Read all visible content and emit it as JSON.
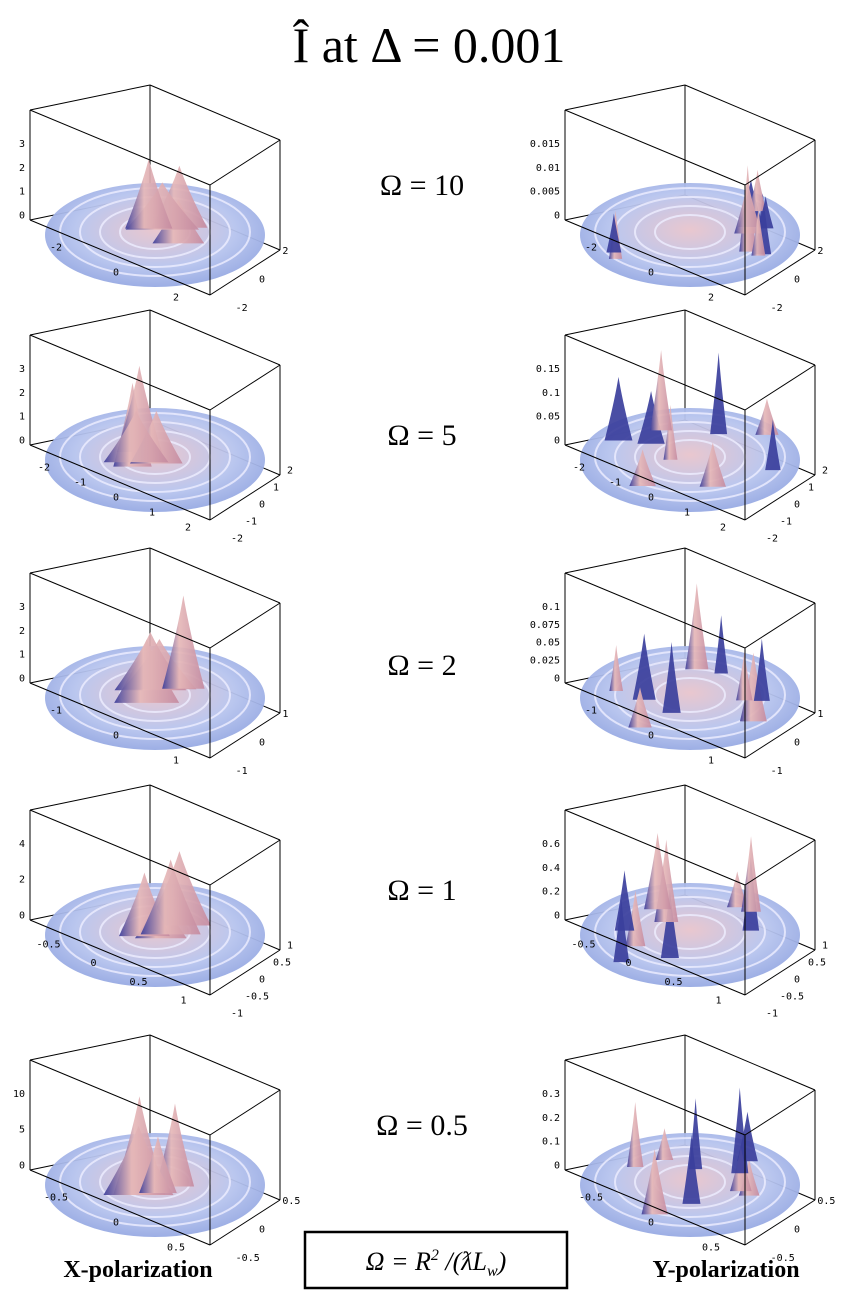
{
  "title": "Î at Δ = 0.001",
  "rows": [
    {
      "omega": "Ω = 10",
      "x_plot": {
        "zticks": [
          "3",
          "2",
          "1",
          "0"
        ],
        "xticks": [
          "-2",
          "0",
          "2"
        ],
        "yticks": [
          "2",
          "0",
          "-2"
        ]
      },
      "y_plot": {
        "zticks": [
          "0.015",
          "0.01",
          "0.005",
          "0"
        ],
        "xticks": [
          "-2",
          "0",
          "2"
        ],
        "yticks": [
          "2",
          "0",
          "-2"
        ]
      }
    },
    {
      "omega": "Ω = 5",
      "x_plot": {
        "zticks": [
          "3",
          "2",
          "1",
          "0"
        ],
        "xticks": [
          "-2",
          "-1",
          "0",
          "1",
          "2"
        ],
        "yticks": [
          "2",
          "1",
          "0",
          "-1",
          "-2"
        ]
      },
      "y_plot": {
        "zticks": [
          "0.15",
          "0.1",
          "0.05",
          "0"
        ],
        "xticks": [
          "-2",
          "-1",
          "0",
          "1",
          "2"
        ],
        "yticks": [
          "2",
          "1",
          "0",
          "-1",
          "-2"
        ]
      }
    },
    {
      "omega": "Ω = 2",
      "x_plot": {
        "zticks": [
          "3",
          "2",
          "1",
          "0"
        ],
        "xticks": [
          "-1",
          "0",
          "1"
        ],
        "yticks": [
          "1",
          "0",
          "-1"
        ]
      },
      "y_plot": {
        "zticks": [
          "0.1",
          "0.075",
          "0.05",
          "0.025",
          "0"
        ],
        "xticks": [
          "-1",
          "0",
          "1"
        ],
        "yticks": [
          "1",
          "0",
          "-1"
        ]
      }
    },
    {
      "omega": "Ω = 1",
      "x_plot": {
        "zticks": [
          "4",
          "2",
          "0"
        ],
        "xticks": [
          "-0.5",
          "0",
          "0.5",
          "1"
        ],
        "yticks": [
          "1",
          "0.5",
          "0",
          "-0.5",
          "-1"
        ]
      },
      "y_plot": {
        "zticks": [
          "0.6",
          "0.4",
          "0.2",
          "0"
        ],
        "xticks": [
          "-0.5",
          "0",
          "0.5",
          "1"
        ],
        "yticks": [
          "1",
          "0.5",
          "0",
          "-0.5",
          "-1"
        ]
      }
    },
    {
      "omega": "Ω = 0.5",
      "x_plot": {
        "zticks": [
          "10",
          "5",
          "0"
        ],
        "xticks": [
          "-0.5",
          "0",
          "0.5"
        ],
        "yticks": [
          "0.5",
          "0",
          "-0.5"
        ]
      },
      "y_plot": {
        "zticks": [
          "0.3",
          "0.2",
          "0.1",
          "0"
        ],
        "xticks": [
          "-0.5",
          "0",
          "0.5"
        ],
        "yticks": [
          "0.5",
          "0",
          "-0.5"
        ]
      }
    }
  ],
  "x_label": "X-polarization",
  "y_label": "Y-polarization",
  "formula": {
    "lhs": "Ω = R",
    "sup": "2",
    "mid": " /(ƛL",
    "sub": "w",
    "end": ")"
  }
}
